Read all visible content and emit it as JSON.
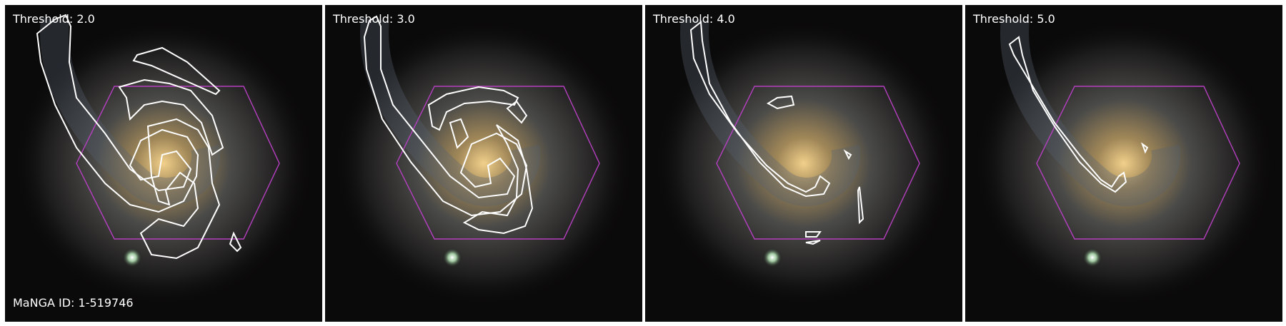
{
  "panels": [
    {
      "threshold_label": "Threshold: 2.0",
      "level": 2.0
    },
    {
      "threshold_label": "Threshold: 3.0",
      "level": 3.0
    },
    {
      "threshold_label": "Threshold: 4.0",
      "level": 4.0
    },
    {
      "threshold_label": "Threshold: 5.0",
      "level": 5.0
    }
  ],
  "manga_id_label": "MaNGA ID: 1-519746",
  "colors": {
    "contour": "#ffffff",
    "hexagon": "#b53fc0",
    "galaxy_core": "#e8c47a",
    "background": "#0b0a0a"
  }
}
